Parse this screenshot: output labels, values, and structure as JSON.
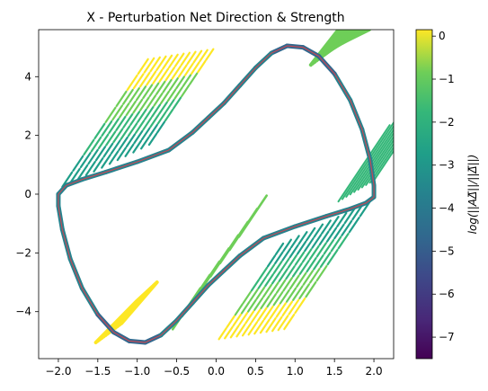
{
  "chart_data": {
    "type": "quiver",
    "title": "X - Perturbation Net Direction & Strength",
    "xlabel": "",
    "ylabel": "",
    "xlim": [
      -2.25,
      2.25
    ],
    "ylim": [
      -5.6,
      5.6
    ],
    "xticks": [
      -2.0,
      -1.5,
      -1.0,
      -0.5,
      0.0,
      0.5,
      1.0,
      1.5,
      2.0
    ],
    "xtick_labels": [
      "−2.0",
      "−1.5",
      "−1.0",
      "−0.5",
      "0.0",
      "0.5",
      "1.0",
      "1.5",
      "2.0"
    ],
    "yticks": [
      -4,
      -2,
      0,
      2,
      4
    ],
    "ytick_labels": [
      "−4",
      "−2",
      "0",
      "2",
      "4"
    ],
    "colorbar": {
      "label": "log(||AΔ̅||/||Δ̅||)",
      "colormap": "viridis",
      "range": [
        -7.5,
        0.15
      ],
      "ticks": [
        0,
        -1,
        -2,
        -3,
        -4,
        -5,
        -6,
        -7
      ],
      "tick_labels": [
        "0",
        "−1",
        "−2",
        "−3",
        "−4",
        "−5",
        "−6",
        "−7"
      ]
    },
    "limit_cycle": {
      "color": "#c04a57",
      "points": [
        [
          -2.0,
          0.0
        ],
        [
          -2.0,
          -0.4
        ],
        [
          -1.95,
          -1.2
        ],
        [
          -1.85,
          -2.2
        ],
        [
          -1.7,
          -3.2
        ],
        [
          -1.5,
          -4.1
        ],
        [
          -1.3,
          -4.7
        ],
        [
          -1.1,
          -5.0
        ],
        [
          -0.9,
          -5.05
        ],
        [
          -0.7,
          -4.8
        ],
        [
          -0.5,
          -4.3
        ],
        [
          -0.3,
          -3.7
        ],
        [
          -0.1,
          -3.1
        ],
        [
          0.1,
          -2.6
        ],
        [
          0.3,
          -2.1
        ],
        [
          0.6,
          -1.5
        ],
        [
          1.0,
          -1.1
        ],
        [
          1.4,
          -0.75
        ],
        [
          1.7,
          -0.5
        ],
        [
          1.9,
          -0.3
        ],
        [
          2.0,
          -0.1
        ],
        [
          2.0,
          0.3
        ],
        [
          1.95,
          1.2
        ],
        [
          1.85,
          2.2
        ],
        [
          1.7,
          3.2
        ],
        [
          1.5,
          4.1
        ],
        [
          1.3,
          4.7
        ],
        [
          1.1,
          5.0
        ],
        [
          0.9,
          5.05
        ],
        [
          0.7,
          4.8
        ],
        [
          0.5,
          4.3
        ],
        [
          0.3,
          3.7
        ],
        [
          0.1,
          3.1
        ],
        [
          -0.1,
          2.6
        ],
        [
          -0.3,
          2.1
        ],
        [
          -0.6,
          1.5
        ],
        [
          -1.0,
          1.1
        ],
        [
          -1.4,
          0.75
        ],
        [
          -1.7,
          0.5
        ],
        [
          -1.9,
          0.3
        ],
        [
          -2.0,
          0.0
        ]
      ]
    }
  }
}
